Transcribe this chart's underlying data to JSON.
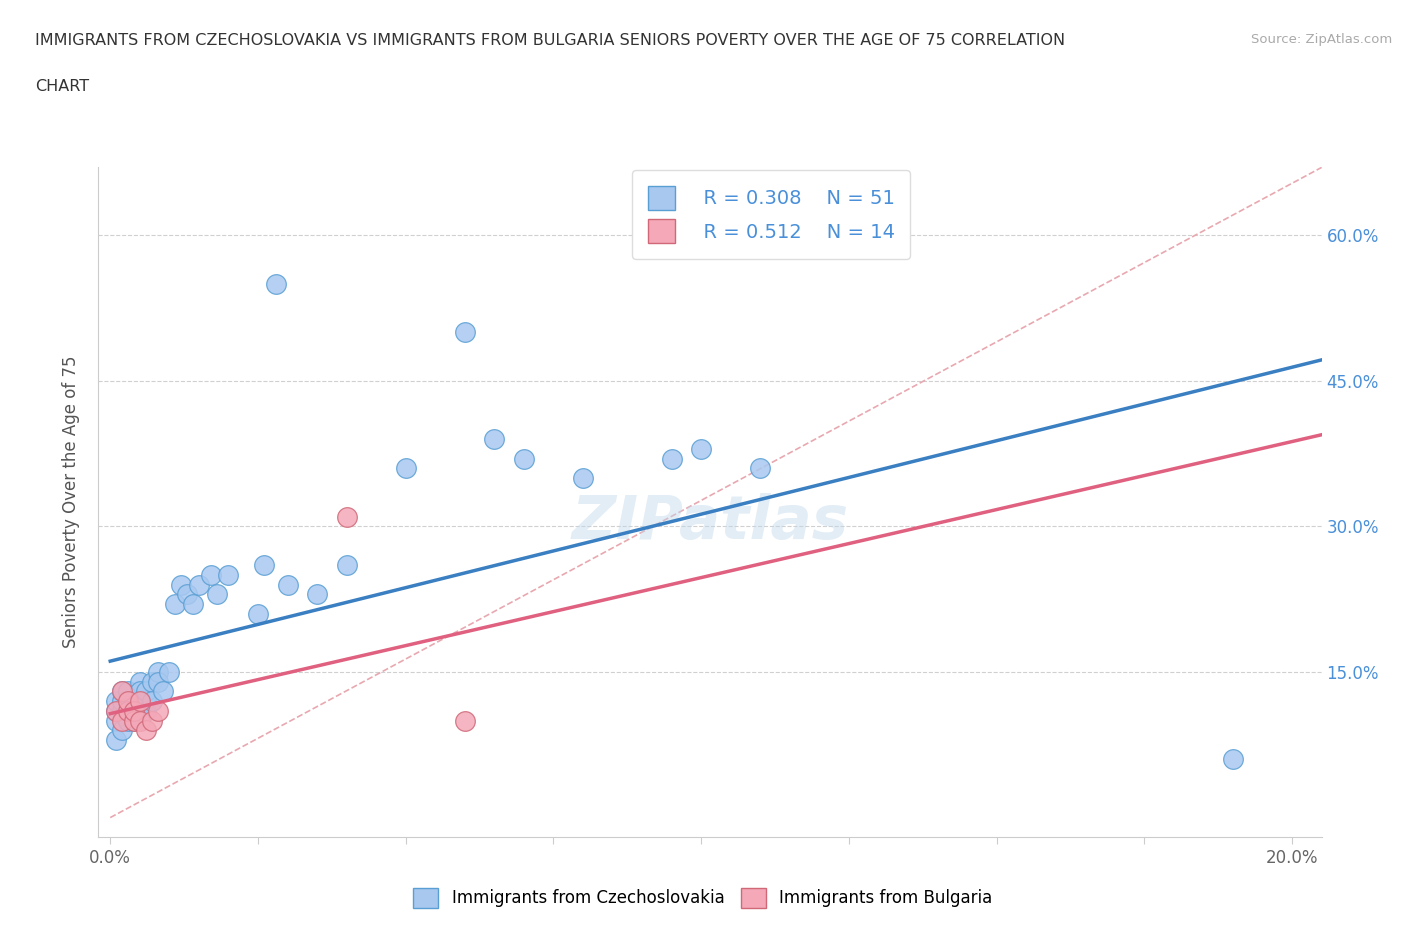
{
  "title_line1": "IMMIGRANTS FROM CZECHOSLOVAKIA VS IMMIGRANTS FROM BULGARIA SENIORS POVERTY OVER THE AGE OF 75 CORRELATION",
  "title_line2": "CHART",
  "source_text": "Source: ZipAtlas.com",
  "ylabel": "Seniors Poverty Over the Age of 75",
  "xlim": [
    -0.002,
    0.205
  ],
  "ylim": [
    -0.02,
    0.67
  ],
  "color_czech": "#a8c8f0",
  "color_czech_edge": "#5a9fd4",
  "color_bulg": "#f4a8b8",
  "color_bulg_edge": "#d06878",
  "trendline_czech": "#3a7fc1",
  "trendline_bulg": "#e06080",
  "trendline_ref": "#e8a8b0",
  "legend_R1": "R = 0.308",
  "legend_N1": "N = 51",
  "legend_R2": "R = 0.512",
  "legend_N2": "N = 14",
  "legend_color": "#4a90d9",
  "watermark": "ZIPatlas",
  "ytick_right_labels": [
    "",
    "15.0%",
    "30.0%",
    "45.0%",
    "60.0%"
  ],
  "ytick_positions": [
    0.0,
    0.15,
    0.3,
    0.45,
    0.6
  ],
  "czech_x": [
    0.001,
    0.001,
    0.001,
    0.001,
    0.002,
    0.002,
    0.002,
    0.002,
    0.003,
    0.003,
    0.003,
    0.003,
    0.004,
    0.004,
    0.004,
    0.005,
    0.005,
    0.005,
    0.005,
    0.006,
    0.006,
    0.006,
    0.007,
    0.007,
    0.008,
    0.008,
    0.009,
    0.01,
    0.011,
    0.012,
    0.013,
    0.014,
    0.015,
    0.017,
    0.018,
    0.02,
    0.025,
    0.026,
    0.03,
    0.035,
    0.04,
    0.05,
    0.06,
    0.065,
    0.07,
    0.08,
    0.095,
    0.1,
    0.11,
    0.19,
    0.028
  ],
  "czech_y": [
    0.1,
    0.11,
    0.12,
    0.08,
    0.11,
    0.12,
    0.13,
    0.09,
    0.1,
    0.12,
    0.11,
    0.13,
    0.12,
    0.11,
    0.1,
    0.14,
    0.12,
    0.11,
    0.13,
    0.12,
    0.13,
    0.11,
    0.14,
    0.12,
    0.15,
    0.14,
    0.13,
    0.15,
    0.22,
    0.24,
    0.23,
    0.22,
    0.24,
    0.25,
    0.23,
    0.25,
    0.21,
    0.26,
    0.24,
    0.23,
    0.26,
    0.36,
    0.5,
    0.39,
    0.37,
    0.35,
    0.37,
    0.38,
    0.36,
    0.06,
    0.55
  ],
  "bulgaria_x": [
    0.001,
    0.002,
    0.002,
    0.003,
    0.003,
    0.004,
    0.004,
    0.005,
    0.005,
    0.006,
    0.007,
    0.008,
    0.04,
    0.06
  ],
  "bulgaria_y": [
    0.11,
    0.1,
    0.13,
    0.11,
    0.12,
    0.1,
    0.11,
    0.1,
    0.12,
    0.09,
    0.1,
    0.11,
    0.31,
    0.1
  ]
}
